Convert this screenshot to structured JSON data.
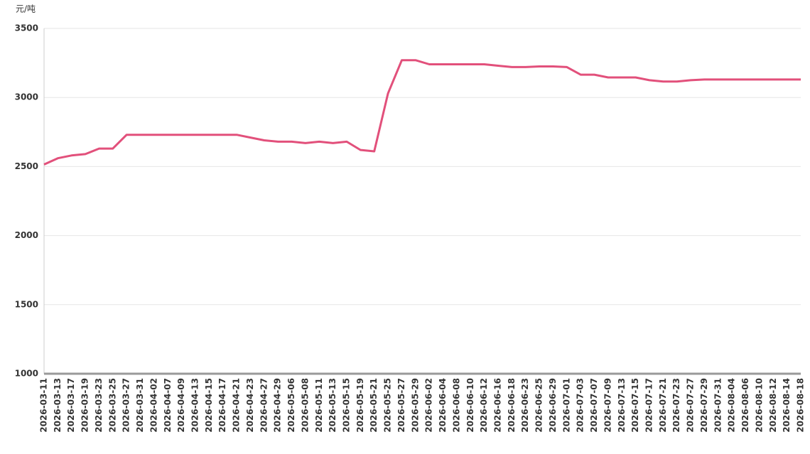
{
  "chart_data": {
    "type": "line",
    "y_unit": "元/吨",
    "categories": [
      "2026-03-11",
      "2026-03-13",
      "2026-03-17",
      "2026-03-19",
      "2026-03-23",
      "2026-03-25",
      "2026-03-27",
      "2026-03-31",
      "2026-04-02",
      "2026-04-07",
      "2026-04-09",
      "2026-04-13",
      "2026-04-15",
      "2026-04-17",
      "2026-04-21",
      "2026-04-23",
      "2026-04-27",
      "2026-04-29",
      "2026-05-06",
      "2026-05-08",
      "2026-05-11",
      "2026-05-13",
      "2026-05-15",
      "2026-05-19",
      "2026-05-21",
      "2026-05-25",
      "2026-05-27",
      "2026-05-29",
      "2026-06-02",
      "2026-06-04",
      "2026-06-08",
      "2026-06-10",
      "2026-06-12",
      "2026-06-16",
      "2026-06-18",
      "2026-06-23",
      "2026-06-25",
      "2026-06-29",
      "2026-07-01",
      "2026-07-03",
      "2026-07-07",
      "2026-07-09",
      "2026-07-13",
      "2026-07-15",
      "2026-07-17",
      "2026-07-21",
      "2026-07-23",
      "2026-07-27",
      "2026-07-29",
      "2026-07-31",
      "2026-08-04",
      "2026-08-06",
      "2026-08-10",
      "2026-08-12",
      "2026-08-14",
      "2026-08-18"
    ],
    "values": [
      2515,
      2560,
      2580,
      2590,
      2630,
      2630,
      2730,
      2730,
      2730,
      2730,
      2730,
      2730,
      2730,
      2730,
      2730,
      2710,
      2690,
      2680,
      2680,
      2670,
      2680,
      2670,
      2680,
      2620,
      2610,
      3030,
      3270,
      3270,
      3240,
      3240,
      3240,
      3240,
      3240,
      3230,
      3220,
      3220,
      3225,
      3225,
      3220,
      3165,
      3165,
      3145,
      3145,
      3145,
      3125,
      3115,
      3115,
      3125,
      3130,
      3130,
      3130,
      3130,
      3130,
      3130,
      3130,
      3130
    ],
    "color": "#e2507b",
    "ylim": [
      1000,
      3500
    ],
    "yticks": [
      1000,
      1500,
      2000,
      2500,
      3000,
      3500
    ],
    "grid": true
  }
}
